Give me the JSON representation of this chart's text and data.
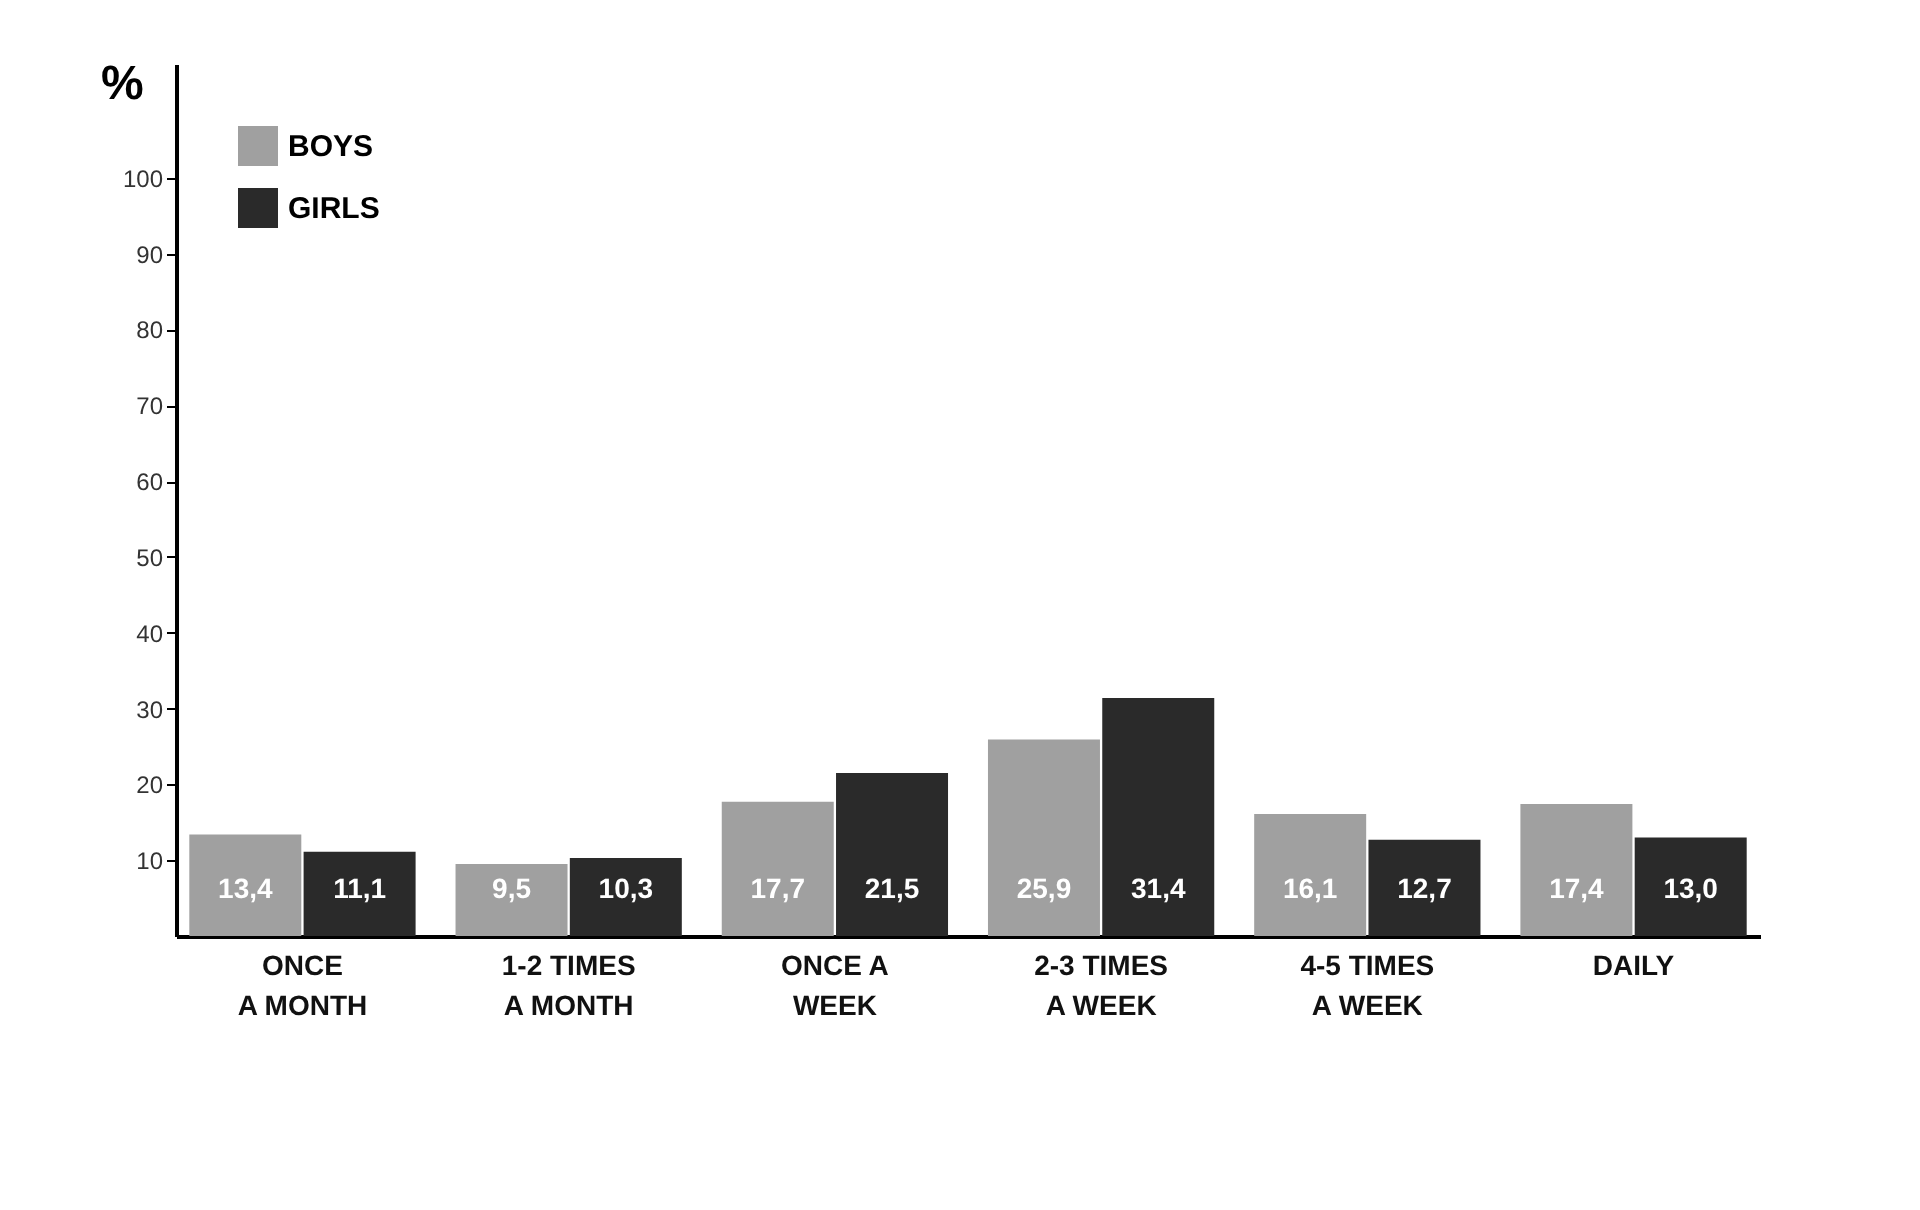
{
  "chart_data": {
    "type": "bar",
    "ylabel": "%",
    "categories": [
      "ONCE\nA MONTH",
      "1-2 TIMES\nA MONTH",
      "ONCE A\nWEEK",
      "2-3 TIMES\nA WEEK",
      "4-5 TIMES\nA WEEK",
      "DAILY"
    ],
    "series": [
      {
        "name": "BOYS",
        "color": "#a0a0a0",
        "values": [
          13.4,
          9.5,
          17.7,
          25.9,
          16.1,
          17.4
        ],
        "value_labels": [
          "13,4",
          "9,5",
          "17,7",
          "25,9",
          "16,1",
          "17,4"
        ]
      },
      {
        "name": "GIRLS",
        "color": "#2a2a2a",
        "values": [
          11.1,
          10.3,
          21.5,
          31.4,
          12.7,
          13.0
        ],
        "value_labels": [
          "11,1",
          "10,3",
          "21,5",
          "31,4",
          "12,7",
          "13,0"
        ]
      }
    ],
    "ylim": [
      0,
      115
    ],
    "yticks": [
      10,
      20,
      30,
      40,
      50,
      60,
      70,
      80,
      90,
      100
    ],
    "grid": false,
    "legend": "top left"
  }
}
